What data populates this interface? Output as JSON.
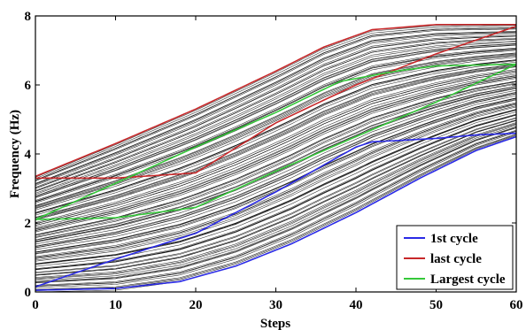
{
  "chart_data": {
    "type": "line",
    "xlabel": "Steps",
    "ylabel": "Frequency (Hz)",
    "xlim": [
      0,
      60
    ],
    "ylim": [
      0,
      8
    ],
    "xticks": [
      0,
      10,
      20,
      30,
      40,
      50,
      60
    ],
    "yticks": [
      0,
      2,
      4,
      6,
      8
    ],
    "grid": false,
    "legend_position": "bottom-right",
    "colors": {
      "first": "#2a2ae6",
      "last": "#c8282a",
      "largest": "#35c83a",
      "background": "#000000"
    },
    "series": [
      {
        "name": "1st cycle",
        "color": "#2a2ae6",
        "bands": [
          {
            "x": [
              0,
              10,
              18,
              25,
              32,
              40,
              48,
              55,
              60
            ],
            "y": [
              0.05,
              0.1,
              0.3,
              0.75,
              1.4,
              2.3,
              3.3,
              4.1,
              4.5
            ]
          },
          {
            "x": [
              0,
              10,
              20,
              30,
              40,
              42,
              50,
              55,
              60
            ],
            "y": [
              0.15,
              0.95,
              1.7,
              2.9,
              4.2,
              4.35,
              4.45,
              4.55,
              4.6
            ]
          }
        ]
      },
      {
        "name": "last cycle",
        "color": "#c8282a",
        "bands": [
          {
            "x": [
              0,
              10,
              20,
              30,
              36,
              42,
              50,
              60
            ],
            "y": [
              3.35,
              4.3,
              5.3,
              6.4,
              7.1,
              7.6,
              7.75,
              7.75
            ]
          },
          {
            "x": [
              0,
              10,
              20,
              30,
              40,
              50,
              60
            ],
            "y": [
              3.3,
              3.3,
              3.45,
              4.9,
              6.0,
              6.9,
              7.7
            ]
          }
        ]
      },
      {
        "name": "Largest cycle",
        "color": "#35c83a",
        "bands": [
          {
            "x": [
              0,
              10,
              20,
              30,
              38,
              45,
              50,
              60
            ],
            "y": [
              2.1,
              3.15,
              4.2,
              5.2,
              6.1,
              6.4,
              6.55,
              6.6
            ]
          },
          {
            "x": [
              0,
              10,
              20,
              30,
              40,
              50,
              60
            ],
            "y": [
              2.1,
              2.15,
              2.45,
              3.5,
              4.5,
              5.5,
              6.6
            ]
          }
        ]
      }
    ],
    "envelope": {
      "upper": {
        "x": [
          0,
          10,
          20,
          30,
          36,
          42,
          50,
          60
        ],
        "y": [
          3.35,
          4.3,
          5.3,
          6.4,
          7.1,
          7.6,
          7.75,
          7.75
        ]
      },
      "lower": {
        "x": [
          0,
          10,
          18,
          25,
          32,
          40,
          48,
          55,
          60
        ],
        "y": [
          0.0,
          0.05,
          0.3,
          0.75,
          1.4,
          2.3,
          3.3,
          4.1,
          4.5
        ]
      },
      "count": 110
    }
  }
}
